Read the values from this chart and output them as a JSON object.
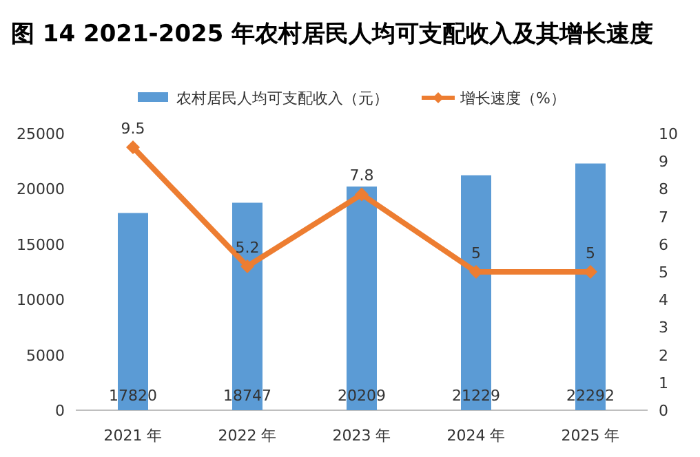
{
  "chart_data": {
    "type": "bar",
    "title": "图 14  2021-2025 年农村居民人均可支配收入及其增长速度",
    "categories": [
      "2021 年",
      "2022 年",
      "2023 年",
      "2024 年",
      "2025 年"
    ],
    "series": [
      {
        "name": "农村居民人均可支配收入（元）",
        "color": "#5b9bd5",
        "values": [
          17820,
          18747,
          20209,
          21229,
          22292
        ]
      },
      {
        "name": "增长速度（%）",
        "type": "line",
        "axis": "y2",
        "color": "#ed7d31",
        "marker": "diamond",
        "values": [
          9.5,
          5.2,
          7.8,
          5,
          5
        ]
      }
    ],
    "ylim": [
      0,
      25000
    ],
    "yticks": [
      0,
      5000,
      10000,
      15000,
      20000,
      25000
    ],
    "y2lim": [
      0,
      10
    ],
    "y2ticks": [
      0,
      1,
      2,
      3,
      4,
      5,
      6,
      7,
      8,
      9,
      10
    ],
    "data_labels": true,
    "legend": "top",
    "grid": false
  }
}
